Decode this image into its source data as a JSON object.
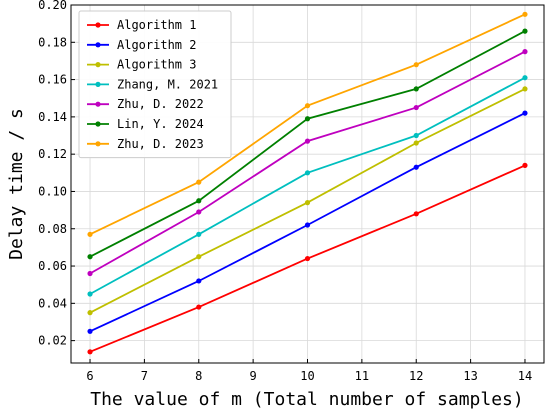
{
  "chart_data": {
    "type": "line",
    "xlabel": "The value of m (Total number of samples)",
    "ylabel": "Delay time / s",
    "xlim": [
      5.65,
      14.35
    ],
    "ylim": [
      0.008,
      0.2
    ],
    "x_ticks": [
      "6",
      "7",
      "8",
      "9",
      "10",
      "11",
      "12",
      "13",
      "14"
    ],
    "y_ticks": [
      "0.02",
      "0.04",
      "0.06",
      "0.08",
      "0.10",
      "0.12",
      "0.14",
      "0.16",
      "0.18",
      "0.20"
    ],
    "grid": true,
    "legend_position": "top-left",
    "x": [
      6,
      8,
      10,
      12,
      14
    ],
    "series": [
      {
        "name": "Algorithm 1",
        "color": "#ff0000",
        "values": [
          0.014,
          0.038,
          0.064,
          0.088,
          0.114
        ]
      },
      {
        "name": "Algorithm 2",
        "color": "#0000ff",
        "values": [
          0.025,
          0.052,
          0.082,
          0.113,
          0.142
        ]
      },
      {
        "name": "Algorithm 3",
        "color": "#bfbf00",
        "values": [
          0.035,
          0.065,
          0.094,
          0.126,
          0.155
        ]
      },
      {
        "name": "Zhang, M. 2021",
        "color": "#00bfbf",
        "values": [
          0.045,
          0.077,
          0.11,
          0.13,
          0.161
        ]
      },
      {
        "name": "Zhu, D. 2022",
        "color": "#bf00bf",
        "values": [
          0.056,
          0.089,
          0.127,
          0.145,
          0.175
        ]
      },
      {
        "name": "Lin, Y. 2024",
        "color": "#008000",
        "values": [
          0.065,
          0.095,
          0.139,
          0.155,
          0.186
        ]
      },
      {
        "name": "Zhu, D. 2023",
        "color": "#ffa500",
        "values": [
          0.077,
          0.105,
          0.146,
          0.168,
          0.195
        ]
      }
    ]
  }
}
